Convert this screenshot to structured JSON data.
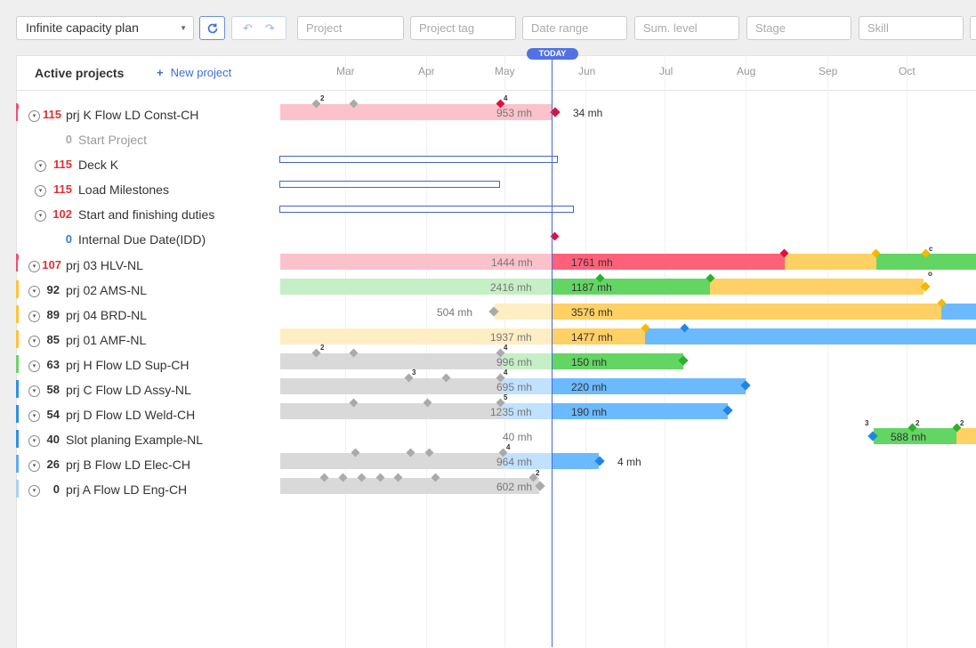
{
  "toolbar": {
    "plan_select": "Infinite capacity plan",
    "filters": {
      "project": "Project",
      "project_tag": "Project tag",
      "date_range": "Date range",
      "sum_level": "Sum. level",
      "stage": "Stage",
      "skill": "Skill"
    }
  },
  "header": {
    "title": "Active projects",
    "new_project": "New project",
    "today": "TODAY",
    "months": [
      "Mar",
      "Apr",
      "May",
      "Jun",
      "Jul",
      "Aug",
      "Sep",
      "Oct"
    ]
  },
  "colors": {
    "red": "#ff6178",
    "pink": "#fbc2cb",
    "green": "#63d563",
    "light_green": "#c5efc5",
    "yellow": "#ffd064",
    "light_yellow": "#ffeec3",
    "blue": "#6bbaff",
    "light_blue": "#c0e1ff",
    "gray": "#d9d9d9",
    "accent": "#4b68db"
  },
  "rows": [
    {
      "num": "115",
      "label": "prj K Flow LD Const-CH",
      "num_color": "#e03131",
      "flag": "#f0506e",
      "flag_kind": "pin",
      "past_mh": "953 mh",
      "future_mh": "34 mh",
      "milestone_counts": [
        "2",
        "4"
      ]
    },
    {
      "num": "0",
      "label": "Start Project",
      "num_color": "#aaaaaa",
      "muted": true
    },
    {
      "num": "115",
      "label": "Deck K",
      "num_color": "#e03131"
    },
    {
      "num": "115",
      "label": "Load Milestones",
      "num_color": "#e03131"
    },
    {
      "num": "102",
      "label": "Start and finishing duties",
      "num_color": "#e03131"
    },
    {
      "num": "0",
      "label": "Internal Due Date(IDD)",
      "num_color": "#2f7fd8"
    },
    {
      "num": "107",
      "label": "prj 03 HLV-NL",
      "num_color": "#e03131",
      "flag": "#f0506e",
      "flag_kind": "pin",
      "past_mh": "1444 mh",
      "future_mh": "1761 mh",
      "milestone_counts": [
        "c"
      ]
    },
    {
      "num": "92",
      "label": "prj 02 AMS-NL",
      "num_color": "#333333",
      "flag": "#ffc23a",
      "past_mh": "2416 mh",
      "future_mh": "1187 mh",
      "milestone_counts": [
        "o"
      ]
    },
    {
      "num": "89",
      "label": "prj 04 BRD-NL",
      "num_color": "#333333",
      "flag": "#ffc23a",
      "past_mh": "504 mh",
      "future_mh": "3576 mh"
    },
    {
      "num": "85",
      "label": "prj 01 AMF-NL",
      "num_color": "#333333",
      "flag": "#ffc23a",
      "past_mh": "1937 mh",
      "future_mh": "1477 mh"
    },
    {
      "num": "63",
      "label": "prj H Flow LD Sup-CH",
      "num_color": "#333333",
      "flag": "#6cd36c",
      "past_mh": "996 mh",
      "future_mh": "150 mh",
      "milestone_counts": [
        "2",
        "4"
      ]
    },
    {
      "num": "58",
      "label": "prj C Flow LD Assy-NL",
      "num_color": "#333333",
      "flag": "#2f8fe8",
      "past_mh": "695 mh",
      "future_mh": "220 mh",
      "milestone_counts": [
        "3",
        "4"
      ]
    },
    {
      "num": "54",
      "label": "prj D Flow LD Weld-CH",
      "num_color": "#333333",
      "flag": "#2f8fe8",
      "past_mh": "1235 mh",
      "future_mh": "190 mh",
      "milestone_counts": [
        "5"
      ]
    },
    {
      "num": "40",
      "label": "Slot planing Example-NL",
      "num_color": "#333333",
      "flag": "#2f8fe8",
      "past_mh": "40 mh",
      "future_mh": "588 mh",
      "milestone_counts": [
        "3",
        "2",
        "2"
      ]
    },
    {
      "num": "26",
      "label": "prj B Flow LD Elec-CH",
      "num_color": "#333333",
      "flag": "#62aaf0",
      "past_mh": "964 mh",
      "future_mh": "4 mh",
      "milestone_counts": [
        "4"
      ]
    },
    {
      "num": "0",
      "label": "prj A Flow LD Eng-CH",
      "num_color": "#333333",
      "flag": "#a9d0f5",
      "past_mh": "602 mh",
      "milestone_counts": [
        "2"
      ]
    }
  ]
}
